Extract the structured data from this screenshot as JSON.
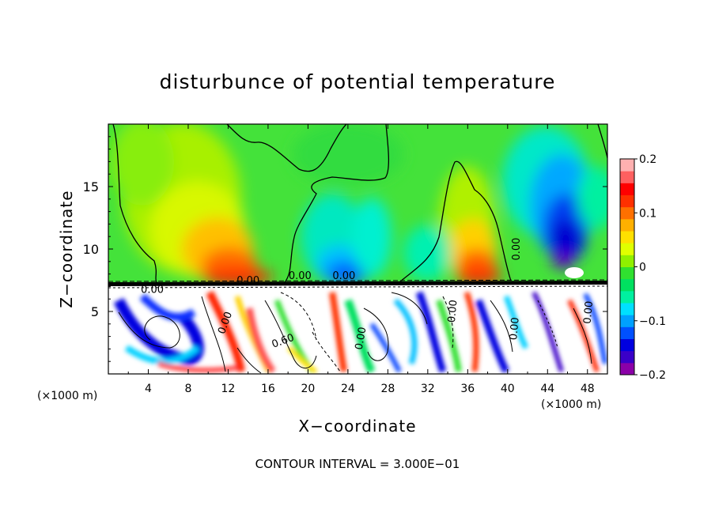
{
  "chart_data": {
    "type": "heatmap",
    "title": "disturbunce of potential temperature",
    "xlabel": "X−coordinate",
    "ylabel": "Z−coordinate",
    "x_unit": "(×1000 m)",
    "y_unit": "(×1000 m)",
    "xlim": [
      0,
      50
    ],
    "ylim": [
      0,
      20
    ],
    "x_ticks": [
      4,
      8,
      12,
      16,
      20,
      24,
      28,
      32,
      36,
      40,
      44,
      48
    ],
    "y_ticks": [
      5,
      10,
      15
    ],
    "colorbar": {
      "min": -0.2,
      "max": 0.2,
      "ticks": [
        0.2,
        0.1,
        0,
        -0.1,
        -0.2
      ],
      "tick_labels": [
        "0.2",
        "0.1",
        "0",
        "−0.1",
        "−0.2"
      ],
      "colors": [
        "#8b00a8",
        "#3a00c8",
        "#0000e0",
        "#0050ff",
        "#00a0ff",
        "#00e0ff",
        "#00f0a0",
        "#00e060",
        "#30e030",
        "#90f000",
        "#e0ff00",
        "#ffe000",
        "#ffb000",
        "#ff7000",
        "#ff3000",
        "#ff0000",
        "#ff6060",
        "#ffb0b0"
      ]
    },
    "contour_labels": [
      "0.00",
      "0.00",
      "0.00",
      "0.00",
      "0.60",
      "0.00",
      "0.00",
      "0.00",
      "0.00",
      "0.00",
      "0.00"
    ],
    "contour_interval_text": "CONTOUR INTERVAL = 3.000E−01",
    "grid": false,
    "legend": "colorbar-right"
  }
}
